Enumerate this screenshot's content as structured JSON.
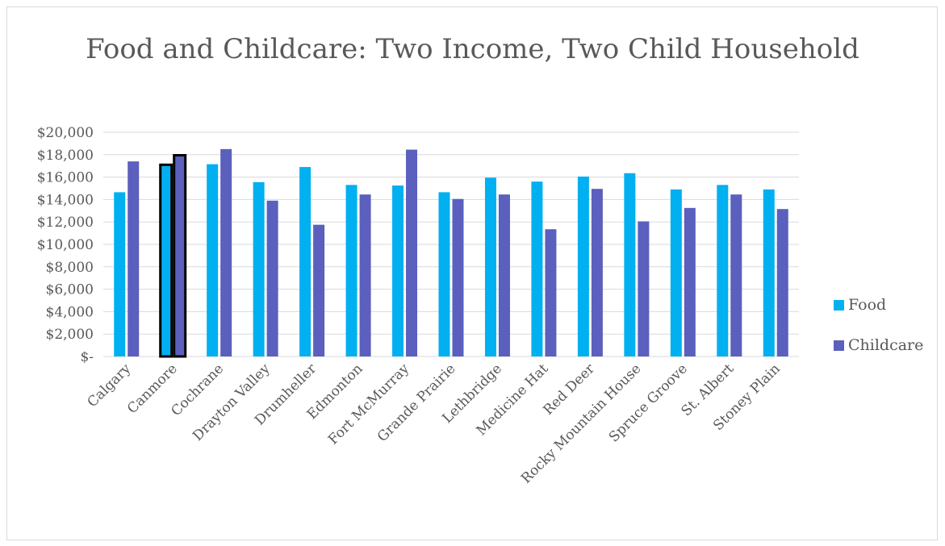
{
  "chart_data": {
    "type": "bar",
    "title": "Food and Childcare: Two Income, Two Child Household",
    "xlabel": "",
    "ylabel": "",
    "ylim": [
      0,
      20000
    ],
    "yticks": [
      0,
      2000,
      4000,
      6000,
      8000,
      10000,
      12000,
      14000,
      16000,
      18000,
      20000
    ],
    "ytick_labels": [
      "$-",
      "$2,000",
      "$4,000",
      "$6,000",
      "$8,000",
      "$10,000",
      "$12,000",
      "$14,000",
      "$16,000",
      "$18,000",
      "$20,000"
    ],
    "grid": true,
    "legend_position": "right",
    "highlighted_category": "Canmore",
    "categories": [
      "Calgary",
      "Canmore",
      "Cochrane",
      "Drayton Valley",
      "Drumheller",
      "Edmonton",
      "Fort McMurray",
      "Grande Prairie",
      "Lethbridge",
      "Medicine Hat",
      "Red Deer",
      "Rocky Mountain House",
      "Spruce Groove",
      "St. Albert",
      "Stoney Plain"
    ],
    "series": [
      {
        "name": "Food",
        "color": "#00b0f0",
        "values": [
          14650,
          17100,
          17150,
          15550,
          16900,
          15300,
          15250,
          14650,
          15950,
          15600,
          16050,
          16350,
          14900,
          15300,
          14900
        ]
      },
      {
        "name": "Childcare",
        "color": "#5b5fbd",
        "values": [
          17400,
          17950,
          18500,
          13900,
          11750,
          14450,
          18450,
          14050,
          14450,
          11350,
          14950,
          12050,
          13250,
          14450,
          13150
        ]
      }
    ]
  }
}
